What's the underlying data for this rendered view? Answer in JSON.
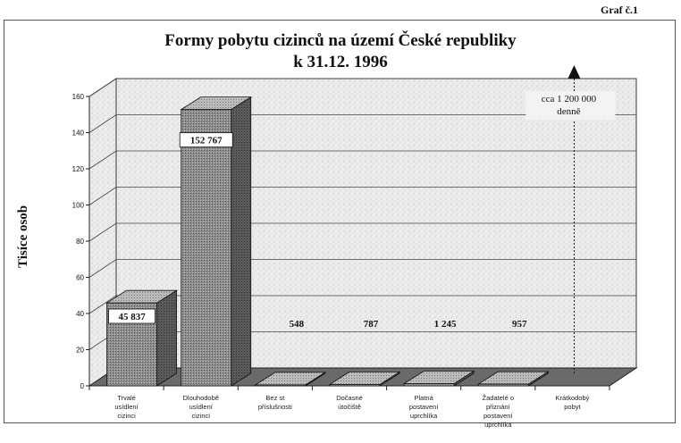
{
  "page": {
    "graf_label": "Graf č.1"
  },
  "chart_data": {
    "type": "bar",
    "title": [
      "Formy pobytu cizinců na území České republiky",
      "k 31.12. 1996"
    ],
    "ylabel": "Tisíce osob",
    "xlabel": "",
    "ylim": [
      0,
      160
    ],
    "yticks": [
      0,
      20,
      40,
      60,
      80,
      100,
      120,
      140,
      160
    ],
    "categories": [
      [
        "Trvalé",
        "usídlení",
        "cizinci"
      ],
      [
        "Dlouhodobě",
        "usídlení",
        "cizinci"
      ],
      [
        "Bez st",
        "příslušnosti"
      ],
      [
        "Dočasné",
        "útočiště"
      ],
      [
        "Platná",
        "postavení",
        "uprchlíka"
      ],
      [
        "Žadatelé o",
        "přiznání",
        "postavení",
        "uprchlíka"
      ],
      [
        "Krátkodobý",
        "pobyt"
      ]
    ],
    "values": [
      45.837,
      152.767,
      0.548,
      0.787,
      1.245,
      0.957,
      null
    ],
    "data_labels": [
      "45 837",
      "152 767",
      "548",
      "787",
      "1 245",
      "957",
      ""
    ],
    "annotation": {
      "category_index": 6,
      "lines": [
        "cca 1 200 000",
        "denně"
      ]
    },
    "grid": true,
    "colors": {
      "bar_front": "#8a8a8a",
      "bar_side": "#555555",
      "bar_top": "#b5b5b5",
      "floor": "#6a6a6a",
      "wall": "#e6e6e6"
    }
  }
}
